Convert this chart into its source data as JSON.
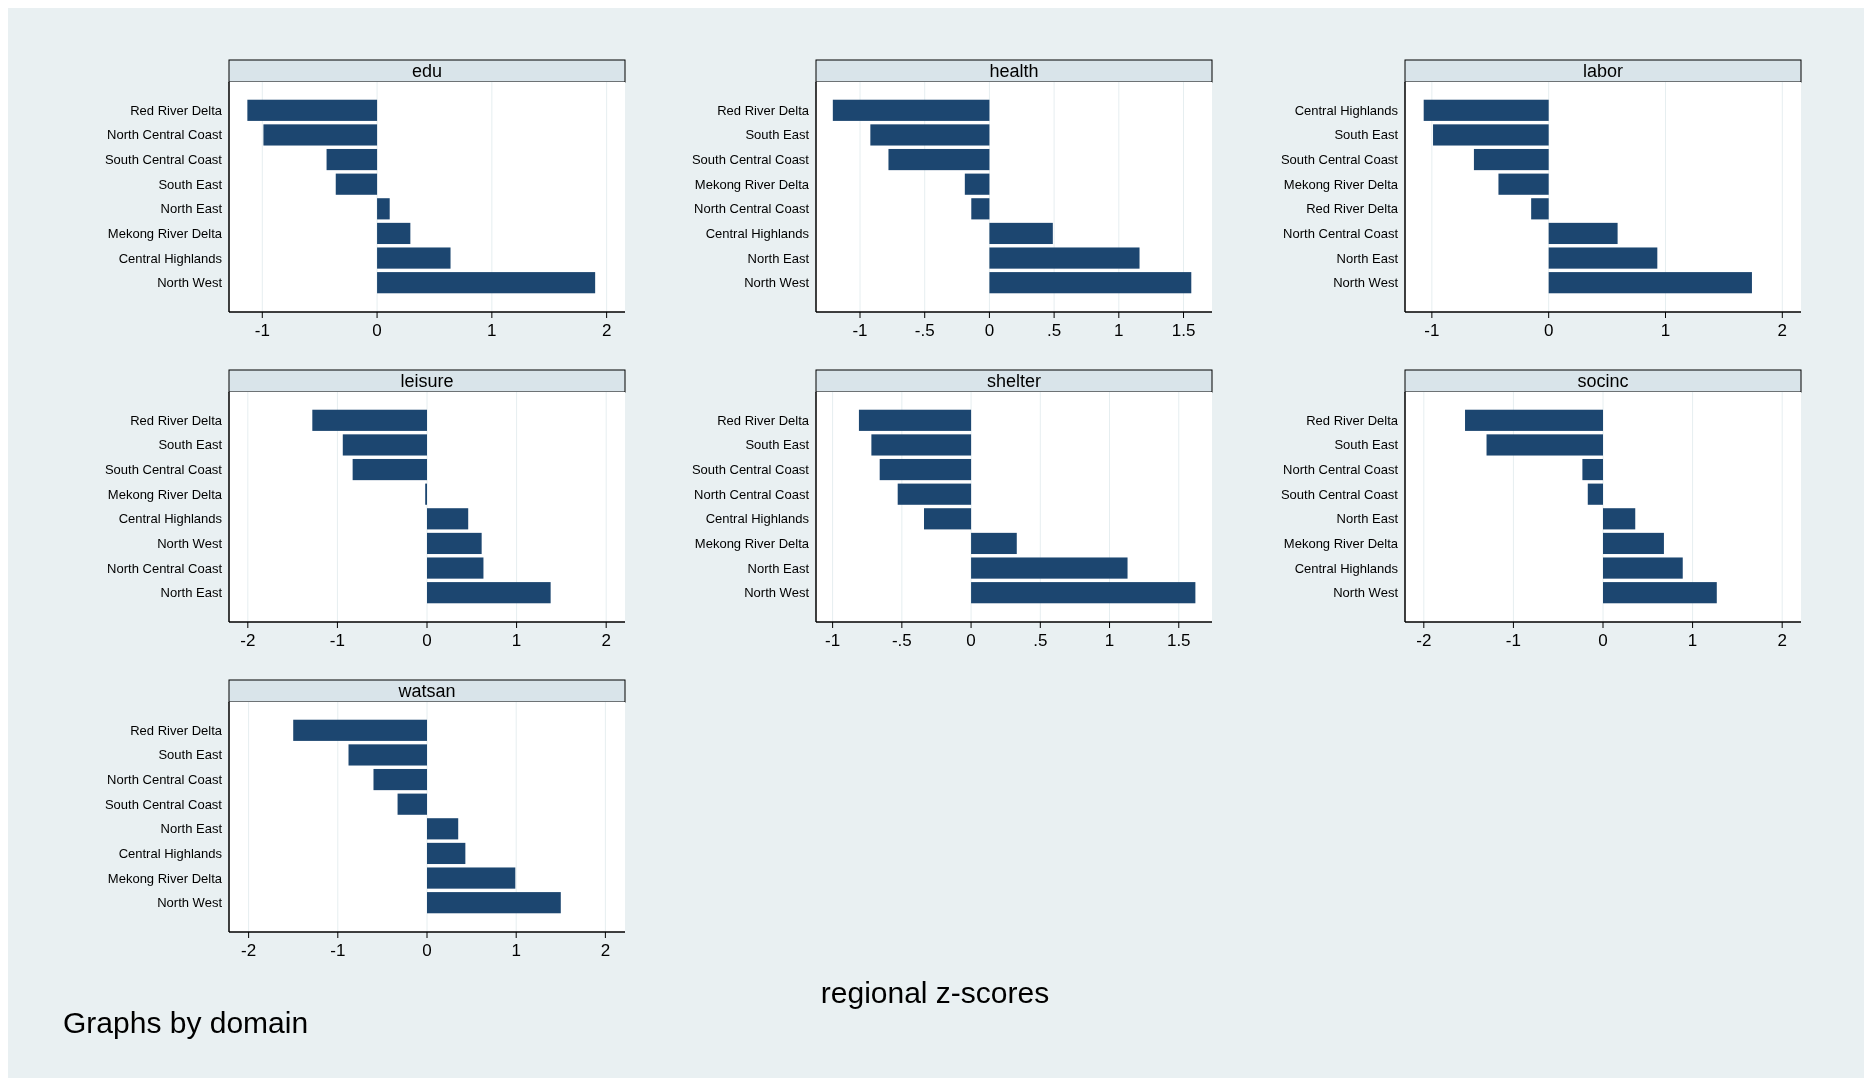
{
  "chart_data": [
    {
      "type": "bar",
      "orientation": "horizontal",
      "title": "edu",
      "categories": [
        "Red River Delta",
        "North Central Coast",
        "South Central Coast",
        "South East",
        "North East",
        "Mekong River Delta",
        "Central Highlands",
        "North West"
      ],
      "values": [
        -1.13,
        -0.99,
        -0.44,
        -0.36,
        0.11,
        0.29,
        0.64,
        1.9
      ],
      "color": "#1c4670",
      "xlim": [
        -1.29,
        2.16
      ],
      "xticks": [
        -1,
        0,
        1,
        2
      ],
      "grid": "x"
    },
    {
      "type": "bar",
      "orientation": "horizontal",
      "title": "health",
      "categories": [
        "Red River Delta",
        "South East",
        "South Central Coast",
        "Mekong River Delta",
        "North Central Coast",
        "Central Highlands",
        "North East",
        "North West"
      ],
      "values": [
        -1.21,
        -0.92,
        -0.78,
        -0.19,
        -0.14,
        0.49,
        1.16,
        1.56
      ],
      "color": "#1c4670",
      "xlim": [
        -1.34,
        1.72
      ],
      "xticks": [
        {
          "value": -1,
          "label": "-1"
        },
        {
          "value": -0.5,
          "label": "-.5"
        },
        {
          "value": 0,
          "label": "0"
        },
        {
          "value": 0.5,
          "label": ".5"
        },
        {
          "value": 1,
          "label": "1"
        },
        {
          "value": 1.5,
          "label": "1.5"
        }
      ],
      "grid": "x"
    },
    {
      "type": "bar",
      "orientation": "horizontal",
      "title": "labor",
      "categories": [
        "Central Highlands",
        "South East",
        "South Central Coast",
        "Mekong River Delta",
        "Red River Delta",
        "North Central Coast",
        "North East",
        "North West"
      ],
      "values": [
        -1.07,
        -0.99,
        -0.64,
        -0.43,
        -0.15,
        0.59,
        0.93,
        1.74
      ],
      "color": "#1c4670",
      "xlim": [
        -1.23,
        2.16
      ],
      "xticks": [
        -1,
        0,
        1,
        2
      ],
      "grid": "x"
    },
    {
      "type": "bar",
      "orientation": "horizontal",
      "title": "leisure",
      "categories": [
        "Red River Delta",
        "South East",
        "South Central Coast",
        "Mekong River Delta",
        "Central Highlands",
        "North West",
        "North Central Coast",
        "North East"
      ],
      "values": [
        -1.28,
        -0.94,
        -0.83,
        -0.02,
        0.46,
        0.61,
        0.63,
        1.38
      ],
      "color": "#1c4670",
      "xlim": [
        -2.21,
        2.21
      ],
      "xticks": [
        -2,
        -1,
        0,
        1,
        2
      ],
      "grid": "x"
    },
    {
      "type": "bar",
      "orientation": "horizontal",
      "title": "shelter",
      "categories": [
        "Red River Delta",
        "South East",
        "South Central Coast",
        "North Central Coast",
        "Central Highlands",
        "Mekong River Delta",
        "North East",
        "North West"
      ],
      "values": [
        -0.81,
        -0.72,
        -0.66,
        -0.53,
        -0.34,
        0.33,
        1.13,
        1.62
      ],
      "color": "#1c4670",
      "xlim": [
        -1.12,
        1.74
      ],
      "xticks": [
        {
          "value": -1,
          "label": "-1"
        },
        {
          "value": -0.5,
          "label": "-.5"
        },
        {
          "value": 0,
          "label": "0"
        },
        {
          "value": 0.5,
          "label": ".5"
        },
        {
          "value": 1,
          "label": "1"
        },
        {
          "value": 1.5,
          "label": "1.5"
        }
      ],
      "grid": "x"
    },
    {
      "type": "bar",
      "orientation": "horizontal",
      "title": "socinc",
      "categories": [
        "Red River Delta",
        "South East",
        "North Central Coast",
        "South Central Coast",
        "North East",
        "Mekong River Delta",
        "Central Highlands",
        "North West"
      ],
      "values": [
        -1.54,
        -1.3,
        -0.23,
        -0.17,
        0.36,
        0.68,
        0.89,
        1.27
      ],
      "color": "#1c4670",
      "xlim": [
        -2.21,
        2.21
      ],
      "xticks": [
        -2,
        -1,
        0,
        1,
        2
      ],
      "grid": "x"
    },
    {
      "type": "bar",
      "orientation": "horizontal",
      "title": "watsan",
      "categories": [
        "Red River Delta",
        "South East",
        "North Central Coast",
        "South Central Coast",
        "North East",
        "Central Highlands",
        "Mekong River Delta",
        "North West"
      ],
      "values": [
        -1.5,
        -0.88,
        -0.6,
        -0.33,
        0.35,
        0.43,
        0.99,
        1.5
      ],
      "color": "#1c4670",
      "xlim": [
        -2.22,
        2.22
      ],
      "xticks": [
        -2,
        -1,
        0,
        1,
        2
      ],
      "grid": "x",
      "annotations": [
        "regional z-scores",
        "Graphs by domain"
      ]
    }
  ]
}
